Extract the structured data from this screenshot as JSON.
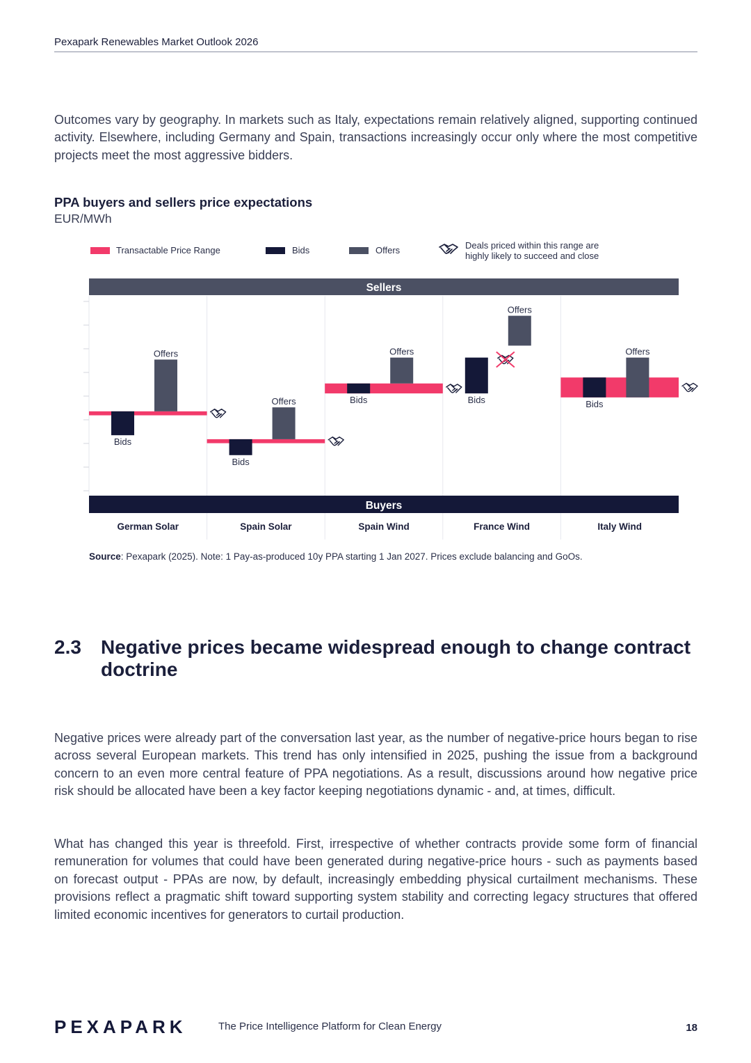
{
  "header": {
    "title": "Pexapark Renewables Market Outlook 2026"
  },
  "intro_paragraph": "Outcomes vary by geography. In markets such as Italy, expectations remain relatively aligned, supporting continued activity. Elsewhere, including Germany and Spain, transactions increasingly occur only where the most competitive projects meet the most aggressive bidders.",
  "chart": {
    "title": "PPA buyers and sellers price expectations",
    "unit": "EUR/MWh",
    "legend": {
      "transactable": "Transactable Price Range",
      "bids": "Bids",
      "offers": "Offers",
      "deals_line1": "Deals priced within this range are",
      "deals_line2": "highly likely to succeed and close"
    },
    "sellers_band": "Sellers",
    "buyers_band": "Buyers",
    "source_label": "Source",
    "source_text": ": Pexapark (2025). Note: 1 Pay-as-produced 10y PPA starting 1 Jan 2027. Prices exclude balancing and GoOs.",
    "colors": {
      "range": "#f23a6a",
      "bids": "#141838",
      "offers": "#4b5063",
      "band": "#4b5063"
    }
  },
  "chart_data": {
    "type": "bar",
    "title": "PPA buyers and sellers price expectations",
    "ylabel": "EUR/MWh",
    "categories": [
      "German Solar",
      "Spain Solar",
      "Spain Wind",
      "France Wind",
      "Italy Wind"
    ],
    "value_labels": {
      "bids": "Bids",
      "offers": "Offers"
    },
    "transactable_range": [
      [
        4.0,
        4.2
      ],
      [
        2.6,
        2.8
      ],
      [
        5.1,
        5.6
      ],
      [
        null,
        null
      ],
      [
        4.9,
        5.9
      ]
    ],
    "bids": [
      [
        3.0,
        4.2
      ],
      [
        2.0,
        2.8
      ],
      [
        5.1,
        5.6
      ],
      [
        5.1,
        6.9
      ],
      [
        4.9,
        5.9
      ]
    ],
    "offers": [
      [
        4.2,
        6.8
      ],
      [
        2.8,
        4.4
      ],
      [
        5.6,
        6.9
      ],
      [
        7.5,
        9.0
      ],
      [
        4.9,
        6.9
      ]
    ],
    "deal_likely": [
      true,
      true,
      true,
      false,
      true
    ],
    "y_scale_note": "relative scale, unlabelled axis",
    "ylim": [
      0,
      10
    ],
    "grid": false
  },
  "section": {
    "number": "2.3",
    "title": "Negative prices became widespread enough to change contract doctrine"
  },
  "paragraph_2": "Negative prices were already part of the conversation last year, as the number of negative-price hours began to rise across several European markets. This trend has only intensified in 2025, pushing the issue from a background concern to an even more central feature of PPA negotiations. As a result, discussions around how negative price risk should be allocated have been a key factor keeping negotiations dynamic - and, at times, difficult.",
  "paragraph_3": "What has changed this year is threefold. First, irrespective of whether contracts provide some form of financial remuneration for volumes that could have been generated during negative-price hours - such as payments based on forecast output - PPAs are now, by default, increasingly embedding physical curtailment mechanisms. These provisions reflect a pragmatic shift toward supporting system stability and correcting legacy structures that offered limited economic incentives for generators to curtail production.",
  "footer": {
    "logo": "PEXAPARK",
    "tagline": "The Price Intelligence Platform for Clean Energy",
    "page_number": "18"
  }
}
